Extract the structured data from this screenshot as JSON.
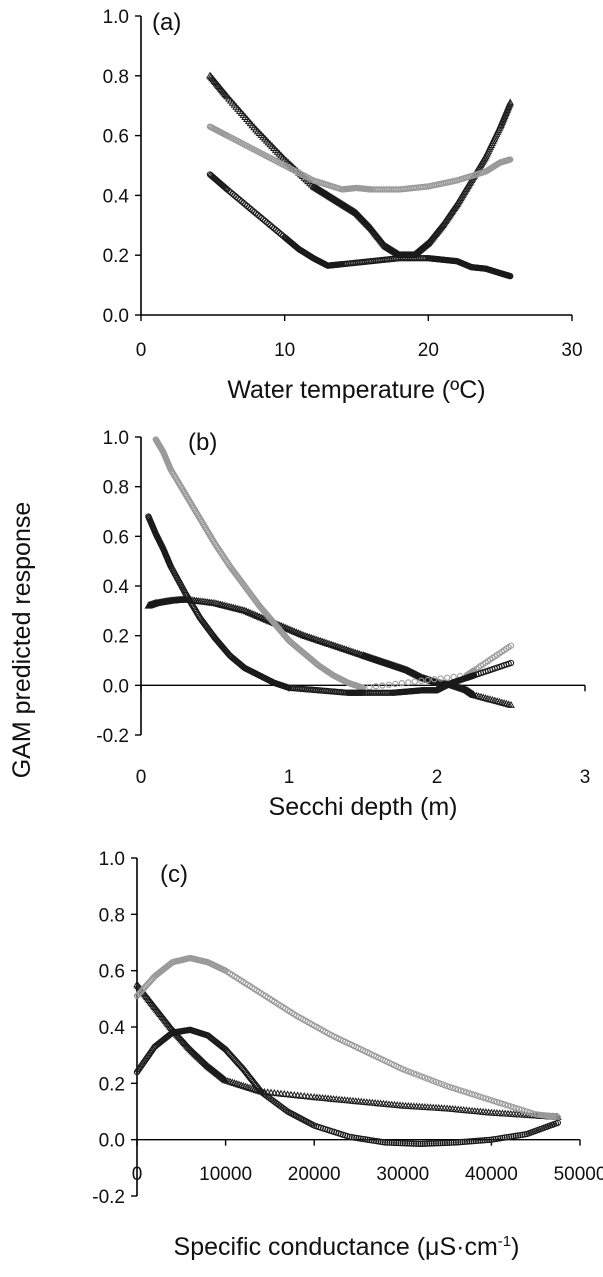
{
  "figure": {
    "ylabel": "GAM predicted response"
  },
  "chart_data": [
    {
      "type": "scatter",
      "panel_label": "(a)",
      "xlabel": "Water temperature (ºC)",
      "ylabel": "",
      "xlim": [
        0,
        30
      ],
      "ylim": [
        0,
        1
      ],
      "xticks": [
        "0",
        "10",
        "20",
        "30"
      ],
      "yticks": [
        "0.0",
        "0.2",
        "0.4",
        "0.6",
        "0.8",
        "1.0"
      ],
      "zero_line": false,
      "series": [
        {
          "marker": "triangle",
          "color": "#1a1a1a",
          "x": [
            4.8,
            6,
            8,
            10,
            12,
            13,
            14,
            15,
            16,
            17,
            18,
            19,
            20,
            21,
            22,
            23,
            24,
            25,
            25.7
          ],
          "y": [
            0.8,
            0.73,
            0.62,
            0.52,
            0.43,
            0.4,
            0.37,
            0.34,
            0.29,
            0.23,
            0.2,
            0.2,
            0.24,
            0.3,
            0.37,
            0.45,
            0.53,
            0.63,
            0.71
          ]
        },
        {
          "marker": "circle",
          "color": "#9a9a9a",
          "x": [
            4.8,
            6,
            8,
            10,
            12,
            14,
            15,
            16,
            18,
            20,
            22,
            24,
            25,
            25.7
          ],
          "y": [
            0.63,
            0.6,
            0.55,
            0.5,
            0.45,
            0.42,
            0.425,
            0.42,
            0.42,
            0.43,
            0.45,
            0.48,
            0.51,
            0.52
          ]
        },
        {
          "marker": "circle",
          "color": "#1a1a1a",
          "x": [
            4.8,
            6,
            8,
            10,
            11,
            12,
            13,
            14,
            16,
            18,
            20,
            21,
            22,
            23,
            24,
            25,
            25.7
          ],
          "y": [
            0.47,
            0.42,
            0.34,
            0.26,
            0.22,
            0.19,
            0.165,
            0.17,
            0.18,
            0.19,
            0.19,
            0.185,
            0.18,
            0.16,
            0.155,
            0.14,
            0.13
          ]
        }
      ]
    },
    {
      "type": "scatter",
      "panel_label": "(b)",
      "xlabel": "Secchi depth (m)",
      "ylabel": "",
      "xlim": [
        0,
        3
      ],
      "ylim": [
        -0.2,
        1
      ],
      "xticks": [
        "0",
        "1",
        "2",
        "3"
      ],
      "yticks": [
        "-0.2",
        "0.0",
        "0.2",
        "0.4",
        "0.6",
        "0.8",
        "1.0"
      ],
      "zero_line": true,
      "series": [
        {
          "marker": "triangle",
          "color": "#1a1a1a",
          "x": [
            0.05,
            0.1,
            0.2,
            0.3,
            0.5,
            0.7,
            0.9,
            1.1,
            1.3,
            1.5,
            1.6,
            1.7,
            1.8,
            1.9,
            2.0,
            2.1,
            2.2,
            2.25,
            2.5
          ],
          "y": [
            0.32,
            0.33,
            0.34,
            0.345,
            0.33,
            0.3,
            0.25,
            0.2,
            0.16,
            0.12,
            0.1,
            0.08,
            0.06,
            0.03,
            0.01,
            0.0,
            -0.02,
            -0.04,
            -0.08
          ]
        },
        {
          "marker": "circle",
          "color": "#9a9a9a",
          "x": [
            0.1,
            0.15,
            0.2,
            0.3,
            0.4,
            0.5,
            0.6,
            0.7,
            0.8,
            0.9,
            1.0,
            1.1,
            1.2,
            1.3,
            1.4,
            1.5,
            2.2,
            2.25,
            2.5
          ],
          "y": [
            0.99,
            0.94,
            0.87,
            0.77,
            0.67,
            0.57,
            0.48,
            0.4,
            0.32,
            0.25,
            0.18,
            0.13,
            0.08,
            0.04,
            0.01,
            -0.01,
            0.04,
            0.06,
            0.16
          ]
        },
        {
          "marker": "circle",
          "color": "#1a1a1a",
          "x": [
            0.05,
            0.1,
            0.15,
            0.2,
            0.3,
            0.4,
            0.5,
            0.6,
            0.7,
            0.8,
            0.9,
            1.0,
            1.2,
            1.4,
            1.5,
            1.7,
            1.8,
            1.9,
            2.0,
            2.1,
            2.2,
            2.25,
            2.5
          ],
          "y": [
            0.68,
            0.61,
            0.55,
            0.48,
            0.37,
            0.27,
            0.19,
            0.12,
            0.07,
            0.04,
            0.01,
            -0.01,
            -0.02,
            -0.03,
            -0.03,
            -0.03,
            -0.025,
            -0.02,
            -0.02,
            0.01,
            0.03,
            0.04,
            0.09
          ]
        }
      ]
    },
    {
      "type": "scatter",
      "panel_label": "(c)",
      "xlabel": "Specific conductance (μS·cm",
      "xlabel_sup": "-1",
      "xlabel_end": ")",
      "ylabel": "",
      "xlim": [
        0,
        50000
      ],
      "ylim": [
        -0.2,
        1
      ],
      "xticks": [
        "0",
        "10000",
        "20000",
        "30000",
        "40000",
        "50000"
      ],
      "yticks": [
        "-0.2",
        "0.0",
        "0.2",
        "0.4",
        "0.6",
        "0.8",
        "1.0"
      ],
      "zero_line": true,
      "series": [
        {
          "marker": "triangle",
          "color": "#1a1a1a",
          "x": [
            0,
            2000,
            4000,
            6000,
            8000,
            10000,
            14000,
            20000,
            25000,
            30000,
            35000,
            40000,
            45000,
            47500
          ],
          "y": [
            0.55,
            0.47,
            0.39,
            0.32,
            0.26,
            0.21,
            0.17,
            0.15,
            0.135,
            0.12,
            0.11,
            0.095,
            0.085,
            0.08
          ]
        },
        {
          "marker": "circle",
          "color": "#9a9a9a",
          "x": [
            0,
            2000,
            4000,
            6000,
            8000,
            10000,
            14000,
            18000,
            22000,
            26000,
            30000,
            35000,
            40000,
            45000,
            47500
          ],
          "y": [
            0.51,
            0.58,
            0.63,
            0.645,
            0.63,
            0.6,
            0.52,
            0.44,
            0.37,
            0.31,
            0.25,
            0.19,
            0.14,
            0.09,
            0.08
          ]
        },
        {
          "marker": "circle",
          "color": "#1a1a1a",
          "x": [
            0,
            2000,
            4000,
            6000,
            8000,
            10000,
            12000,
            14000,
            17000,
            20000,
            24000,
            28000,
            32000,
            36000,
            40000,
            44000,
            47500
          ],
          "y": [
            0.24,
            0.33,
            0.38,
            0.39,
            0.37,
            0.32,
            0.25,
            0.17,
            0.1,
            0.05,
            0.01,
            -0.01,
            -0.015,
            -0.01,
            0.0,
            0.02,
            0.06
          ]
        }
      ]
    }
  ]
}
